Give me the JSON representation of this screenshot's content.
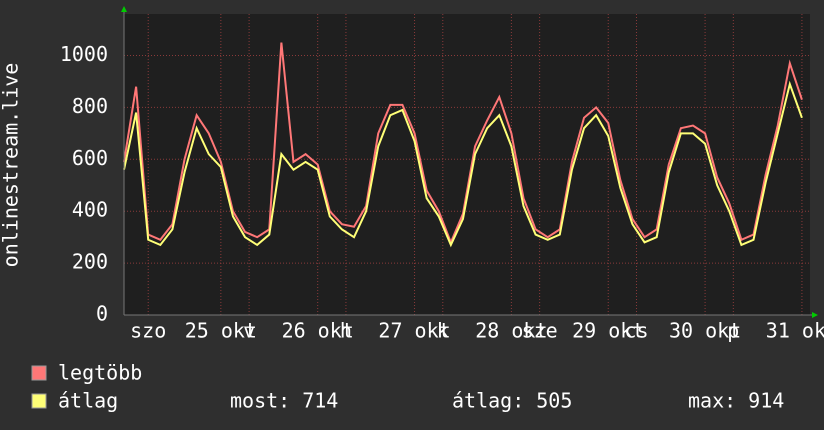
{
  "chart_data": {
    "type": "line",
    "ylabel": "onlinestream.live",
    "x": [
      0,
      3,
      6,
      9,
      12,
      15,
      18,
      21,
      24,
      27,
      30,
      33,
      36,
      39,
      42,
      45,
      48,
      51,
      54,
      57,
      60,
      63,
      66,
      69,
      72,
      75,
      78,
      81,
      84,
      87,
      90,
      93,
      96,
      99,
      102,
      105,
      108,
      111,
      114,
      117,
      120,
      123,
      126,
      129,
      132,
      135,
      138,
      141,
      144,
      147,
      150,
      153,
      156,
      159,
      162,
      165,
      168
    ],
    "series": [
      {
        "name": "legtöbb",
        "color": "#ff7777",
        "values": [
          590,
          880,
          310,
          290,
          350,
          600,
          770,
          700,
          590,
          400,
          320,
          300,
          330,
          1050,
          590,
          620,
          580,
          400,
          350,
          340,
          420,
          700,
          810,
          810,
          700,
          480,
          400,
          280,
          390,
          650,
          750,
          840,
          700,
          450,
          330,
          300,
          330,
          590,
          760,
          800,
          740,
          520,
          370,
          300,
          330,
          580,
          720,
          730,
          700,
          530,
          430,
          290,
          310,
          540,
          730,
          970,
          830
        ]
      },
      {
        "name": "átlag",
        "color": "#ffff77",
        "values": [
          560,
          780,
          290,
          270,
          330,
          550,
          720,
          620,
          570,
          380,
          300,
          270,
          310,
          620,
          560,
          590,
          560,
          380,
          330,
          300,
          400,
          650,
          770,
          790,
          670,
          450,
          380,
          270,
          370,
          620,
          720,
          770,
          650,
          420,
          310,
          290,
          310,
          560,
          720,
          770,
          690,
          490,
          350,
          280,
          300,
          550,
          700,
          700,
          660,
          500,
          400,
          270,
          290,
          510,
          700,
          890,
          760
        ]
      }
    ],
    "xlim": [
      0,
      170
    ],
    "xticks": [
      {
        "value": 6,
        "label": "szo"
      },
      {
        "value": 24,
        "label": "25 okt"
      },
      {
        "value": 31,
        "label": "v"
      },
      {
        "value": 48,
        "label": "26 okt"
      },
      {
        "value": 55,
        "label": "h"
      },
      {
        "value": 72,
        "label": "27 okt"
      },
      {
        "value": 79,
        "label": "k"
      },
      {
        "value": 96,
        "label": "28 okt"
      },
      {
        "value": 103,
        "label": "sze"
      },
      {
        "value": 120,
        "label": "29 okt"
      },
      {
        "value": 127,
        "label": "cs"
      },
      {
        "value": 144,
        "label": "30 okt"
      },
      {
        "value": 151,
        "label": "p"
      },
      {
        "value": 168,
        "label": "31 okt"
      }
    ],
    "ylim": [
      0,
      1160
    ],
    "yticks": [
      0,
      200,
      400,
      600,
      800,
      1000
    ],
    "grid": true,
    "stats": [
      {
        "label": "most:",
        "value": 714
      },
      {
        "label": "átlag:",
        "value": 505
      },
      {
        "label": "max:",
        "value": 914
      }
    ]
  }
}
